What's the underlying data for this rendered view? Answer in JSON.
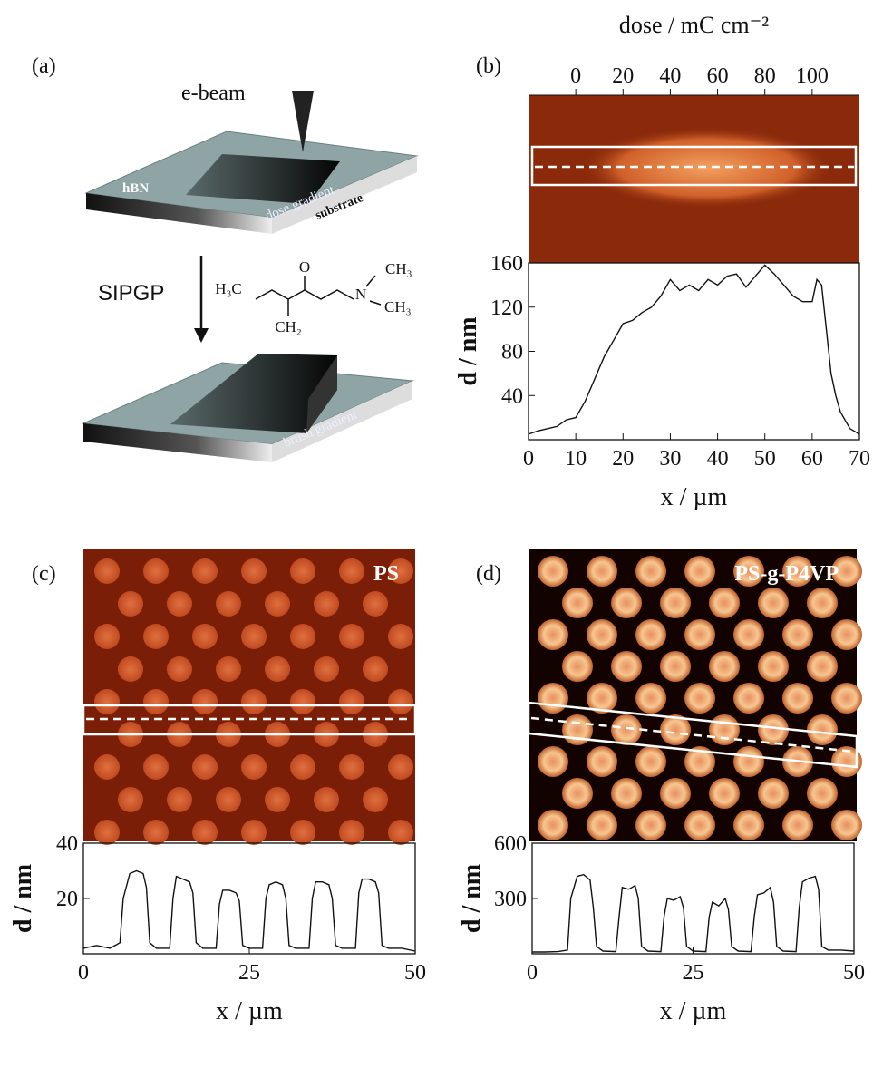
{
  "panel_labels": [
    "(a)",
    "(b)",
    "(c)",
    "(d)"
  ],
  "schematic": {
    "beam": "e-beam",
    "layer": "hBN",
    "dose": "dose gradient",
    "substrate": "substrate",
    "reaction": "SIPGP",
    "brush": "brush gradient",
    "h3c": "H₃C",
    "o": "O",
    "ch2": "CH₂",
    "n": "N",
    "ch3_top": "CH₃",
    "ch3_right": "CH₃"
  },
  "map_labels": {
    "c": "PS",
    "d": "PS-g-P4VP"
  },
  "chart_data": [
    {
      "type": "line",
      "xlabel": "x / µm",
      "ylabel": "d / nm",
      "x2label": "dose / mC cm⁻²",
      "x2lim": [
        -20,
        120
      ],
      "x2ticks": [
        0,
        20,
        40,
        60,
        80,
        100
      ],
      "xlim": [
        0,
        70
      ],
      "xticks": [
        0,
        10,
        20,
        30,
        40,
        50,
        60,
        70
      ],
      "ylim": [
        0,
        160
      ],
      "yticks": [
        40,
        80,
        120,
        160
      ],
      "color": "#111111",
      "x": [
        0,
        2,
        4,
        6,
        8,
        10,
        12,
        14,
        16,
        18,
        20,
        22,
        24,
        26,
        28,
        30,
        32,
        34,
        36,
        38,
        40,
        42,
        44,
        46,
        48,
        50,
        52,
        54,
        56,
        58,
        60,
        61,
        62,
        63,
        64,
        65,
        66,
        68,
        70
      ],
      "values": [
        5,
        8,
        10,
        12,
        18,
        20,
        35,
        55,
        75,
        90,
        105,
        108,
        115,
        120,
        130,
        145,
        135,
        140,
        135,
        145,
        140,
        148,
        150,
        138,
        148,
        158,
        150,
        140,
        130,
        125,
        125,
        145,
        140,
        100,
        60,
        40,
        25,
        10,
        5
      ]
    },
    {
      "type": "line",
      "xlabel": "x / µm",
      "ylabel": "d / nm",
      "xlim": [
        0,
        50
      ],
      "xticks": [
        0,
        25,
        50
      ],
      "ylim": [
        0,
        40
      ],
      "yticks": [
        20,
        40
      ],
      "color": "#111111",
      "x": [
        0,
        2,
        4,
        5.5,
        6,
        7,
        8,
        9,
        9.5,
        10,
        11,
        13,
        13.5,
        14,
        15,
        16,
        16.5,
        17,
        18,
        20,
        20.5,
        21,
        22,
        23,
        23.5,
        24,
        25,
        27,
        27.5,
        28,
        29,
        30,
        30.5,
        31,
        32,
        34,
        34.5,
        35,
        36,
        37,
        37.5,
        38,
        39,
        41,
        41.5,
        42,
        43,
        44,
        44.5,
        45,
        46,
        48,
        50
      ],
      "values": [
        2,
        3,
        2,
        4,
        20,
        29,
        30,
        29,
        24,
        4,
        2,
        2,
        20,
        28,
        27,
        26,
        22,
        4,
        2,
        2,
        18,
        23,
        23,
        22,
        19,
        3,
        2,
        2,
        20,
        25,
        26,
        25,
        20,
        3,
        2,
        2,
        20,
        26,
        26,
        25,
        20,
        3,
        2,
        2,
        22,
        27,
        27,
        26,
        22,
        3,
        2,
        2,
        1
      ]
    },
    {
      "type": "line",
      "xlabel": "x / µm",
      "ylabel": "d / nm",
      "xlim": [
        0,
        50
      ],
      "xticks": [
        0,
        25,
        50
      ],
      "ylim": [
        0,
        600
      ],
      "yticks": [
        300,
        600
      ],
      "color": "#111111",
      "x": [
        0,
        2,
        4,
        5.5,
        6,
        7,
        8,
        9,
        9.5,
        10,
        11,
        13,
        13.5,
        14,
        15,
        16,
        16.5,
        17,
        18,
        20,
        20.5,
        21,
        22,
        23,
        23.5,
        24,
        25,
        27,
        27.5,
        28,
        29,
        30,
        30.5,
        31,
        32,
        34,
        34.5,
        35,
        36,
        37,
        37.5,
        38,
        39,
        41,
        41.5,
        42,
        43,
        44,
        44.5,
        45,
        46,
        48,
        50
      ],
      "values": [
        10,
        10,
        12,
        20,
        300,
        420,
        430,
        400,
        250,
        40,
        15,
        12,
        200,
        360,
        350,
        370,
        300,
        40,
        15,
        12,
        200,
        300,
        290,
        310,
        250,
        40,
        15,
        12,
        200,
        280,
        260,
        300,
        240,
        40,
        15,
        12,
        200,
        320,
        330,
        360,
        280,
        40,
        15,
        12,
        250,
        390,
        410,
        420,
        350,
        40,
        20,
        20,
        15
      ]
    }
  ]
}
